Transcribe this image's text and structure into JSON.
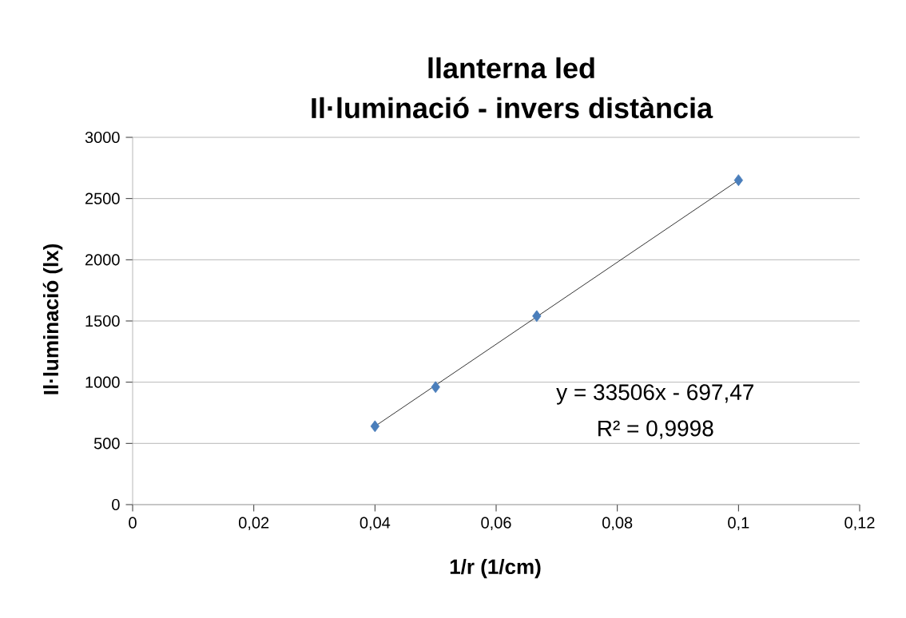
{
  "chart_data": {
    "type": "scatter",
    "title": "llanterna led\nIl·luminació - invers distància",
    "xlabel": "1/r (1/cm)",
    "ylabel": "Il·luminació (lx)",
    "series": [
      {
        "color": "#4a7ebb",
        "x": [
          0.04,
          0.05,
          0.0667,
          0.1
        ],
        "values": [
          640,
          960,
          1540,
          2650
        ],
        "marker": "diamond"
      },
      {
        "type": "line",
        "color": "#000000",
        "x": [
          0.04,
          0.1
        ],
        "values": [
          640,
          2650
        ],
        "marker": "none",
        "line_style": "solid"
      }
    ],
    "annotations": [
      "y = 33506x - 697,47",
      "R² = 0,9998"
    ],
    "xlim": [
      0,
      0.12
    ],
    "ylim": [
      0,
      3000
    ],
    "xticks": [
      0,
      {
        "value": 0.02,
        "label": "0,02"
      },
      {
        "value": 0.04,
        "label": "0,04"
      },
      {
        "value": 0.06,
        "label": "0,06"
      },
      {
        "value": 0.08,
        "label": "0,08"
      },
      {
        "value": 0.1,
        "label": "0,1"
      },
      {
        "value": 0.12,
        "label": "0,12"
      }
    ],
    "yticks": [
      0,
      500,
      1000,
      1500,
      2000,
      2500,
      3000
    ],
    "grid": "y"
  }
}
